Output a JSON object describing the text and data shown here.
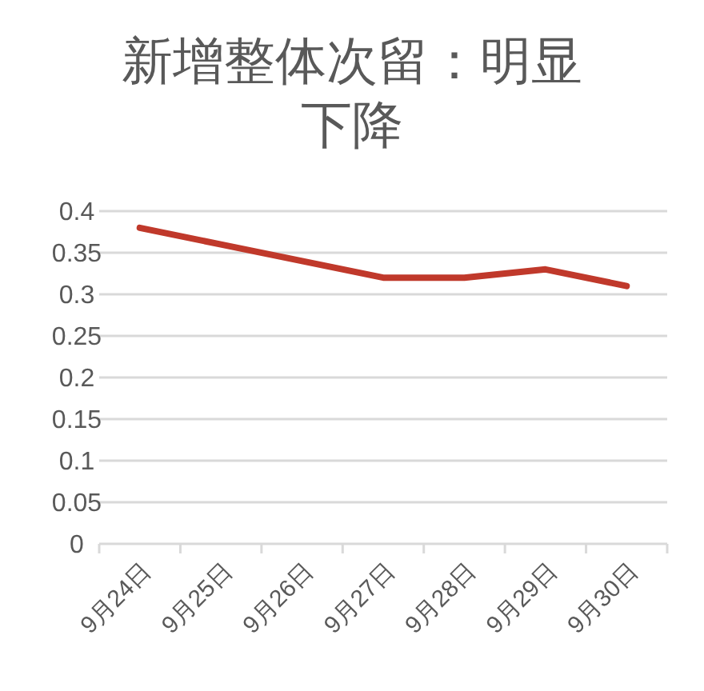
{
  "chart_data": {
    "type": "line",
    "title": "新增整体次留：明显下降",
    "categories": [
      "9月24日",
      "9月25日",
      "9月26日",
      "9月27日",
      "9月28日",
      "9月29日",
      "9月30日"
    ],
    "series": [
      {
        "color": "#c0392b",
        "values": [
          0.38,
          0.36,
          0.34,
          0.32,
          0.32,
          0.33,
          0.31
        ]
      }
    ],
    "ylim": [
      0,
      0.4
    ],
    "yticks": [
      0,
      0.05,
      0.1,
      0.15,
      0.2,
      0.25,
      0.3,
      0.35,
      0.4
    ],
    "grid": "y",
    "marker": "none",
    "line_style": "solid"
  }
}
